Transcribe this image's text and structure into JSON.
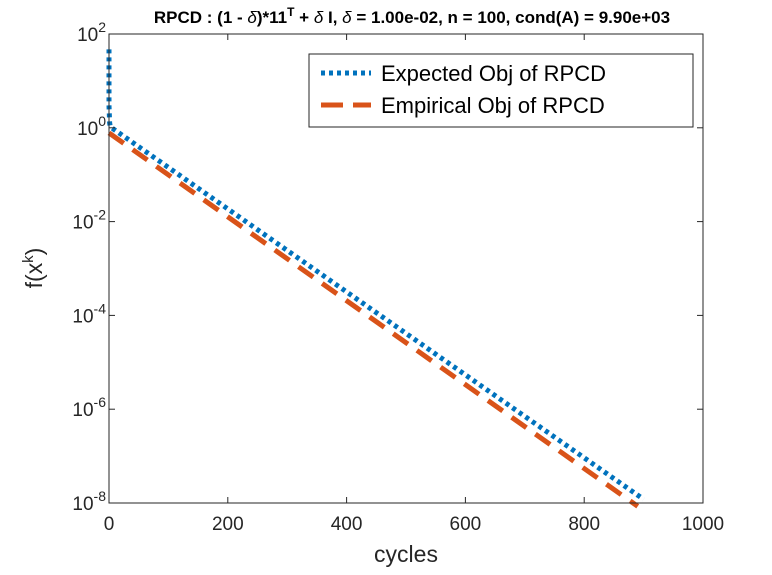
{
  "chart_data": {
    "type": "line",
    "title": "RPCD : (1 - δ)*11ᵀ + δ I, δ = 1.00e-02, n = 100, cond(A) = 9.90e+03",
    "title_parts": {
      "a": "RPCD : (1 - ",
      "delta": "δ",
      "b": ")*11",
      "sup": "T",
      "c": " + ",
      "d": " I, ",
      "e": " = 1.00e-02, n = 100, cond(A) = 9.90e+03"
    },
    "xlabel": "cycles",
    "ylabel": {
      "base": "f(x",
      "sup": "k",
      "close": ")"
    },
    "xlim": [
      0,
      1000
    ],
    "ylim": [
      1e-08,
      100
    ],
    "yscale": "log",
    "grid": false,
    "legend_position": "top-right",
    "xticks": [
      0,
      200,
      400,
      600,
      800,
      1000
    ],
    "xtick_labels": [
      "0",
      "200",
      "400",
      "600",
      "800",
      "1000"
    ],
    "yticks": [
      1e-08,
      1e-06,
      0.0001,
      0.01,
      1,
      100
    ],
    "ytick_labels": [
      {
        "base": "10",
        "exp": "-8"
      },
      {
        "base": "10",
        "exp": "-6"
      },
      {
        "base": "10",
        "exp": "-4"
      },
      {
        "base": "10",
        "exp": "-2"
      },
      {
        "base": "10",
        "exp": "0"
      },
      {
        "base": "10",
        "exp": "2"
      }
    ],
    "series": [
      {
        "name": "Expected Obj of RPCD",
        "style": "dotted",
        "color": "#0072BD",
        "x": [
          0,
          0,
          1,
          2,
          900
        ],
        "y": [
          47.0,
          3.0,
          1.3,
          1.05,
          1.2e-08
        ]
      },
      {
        "name": "Empirical Obj of RPCD",
        "style": "dashed",
        "color": "#D95319",
        "x": [
          0,
          890
        ],
        "y": [
          0.78,
          8.5e-09
        ]
      }
    ]
  }
}
